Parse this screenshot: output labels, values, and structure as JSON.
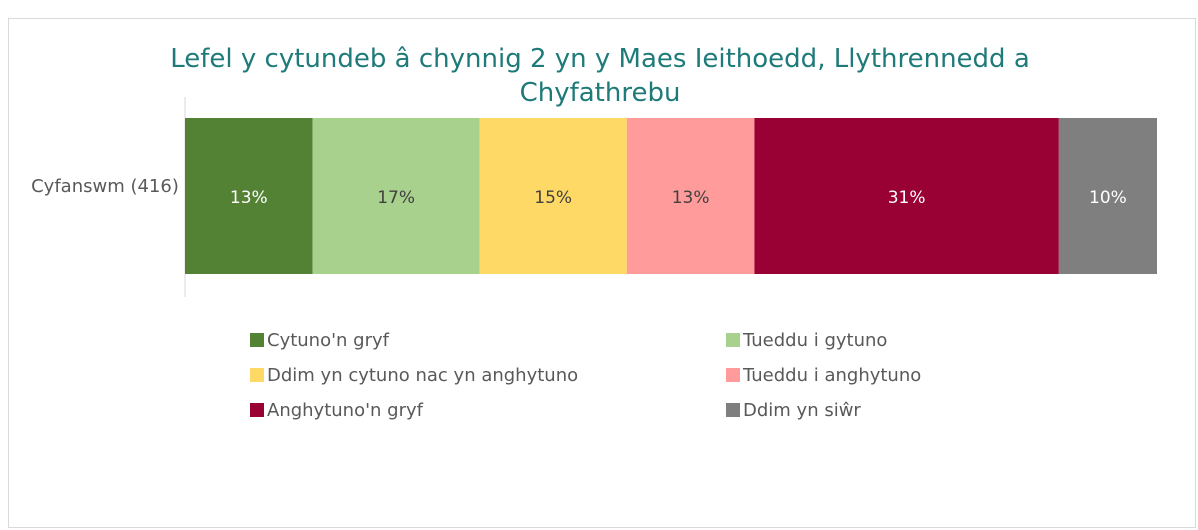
{
  "chart_data": {
    "type": "bar",
    "orientation": "horizontal",
    "stacked": true,
    "title": "Lefel y cytundeb â chynnig 2 yn y Maes Ieithoedd, Llythrennedd a Chyfathrebu",
    "categories": [
      "Cyfanswm (416)"
    ],
    "legend": "bottom",
    "series": [
      {
        "name": "Cytuno'n gryf",
        "color": "#548235",
        "values": [
          13
        ],
        "value_labels": [
          "13%"
        ]
      },
      {
        "name": "Tueddu i gytuno",
        "color": "#a9d18e",
        "values": [
          17
        ],
        "value_labels": [
          "17%"
        ]
      },
      {
        "name": "Ddim yn cytuno nac yn anghytuno",
        "color": "#ffd966",
        "values": [
          15
        ],
        "value_labels": [
          "15%"
        ]
      },
      {
        "name": "Tueddu i anghytuno",
        "color": "#ff9b9b",
        "values": [
          13
        ],
        "value_labels": [
          "13%"
        ]
      },
      {
        "name": "Anghytuno'n gryf",
        "color": "#990033",
        "values": [
          31
        ],
        "value_labels": [
          "31%"
        ]
      },
      {
        "name": "Ddim yn siŵr",
        "color": "#7f7f7f",
        "values": [
          10
        ],
        "value_labels": [
          "10%"
        ]
      }
    ]
  }
}
